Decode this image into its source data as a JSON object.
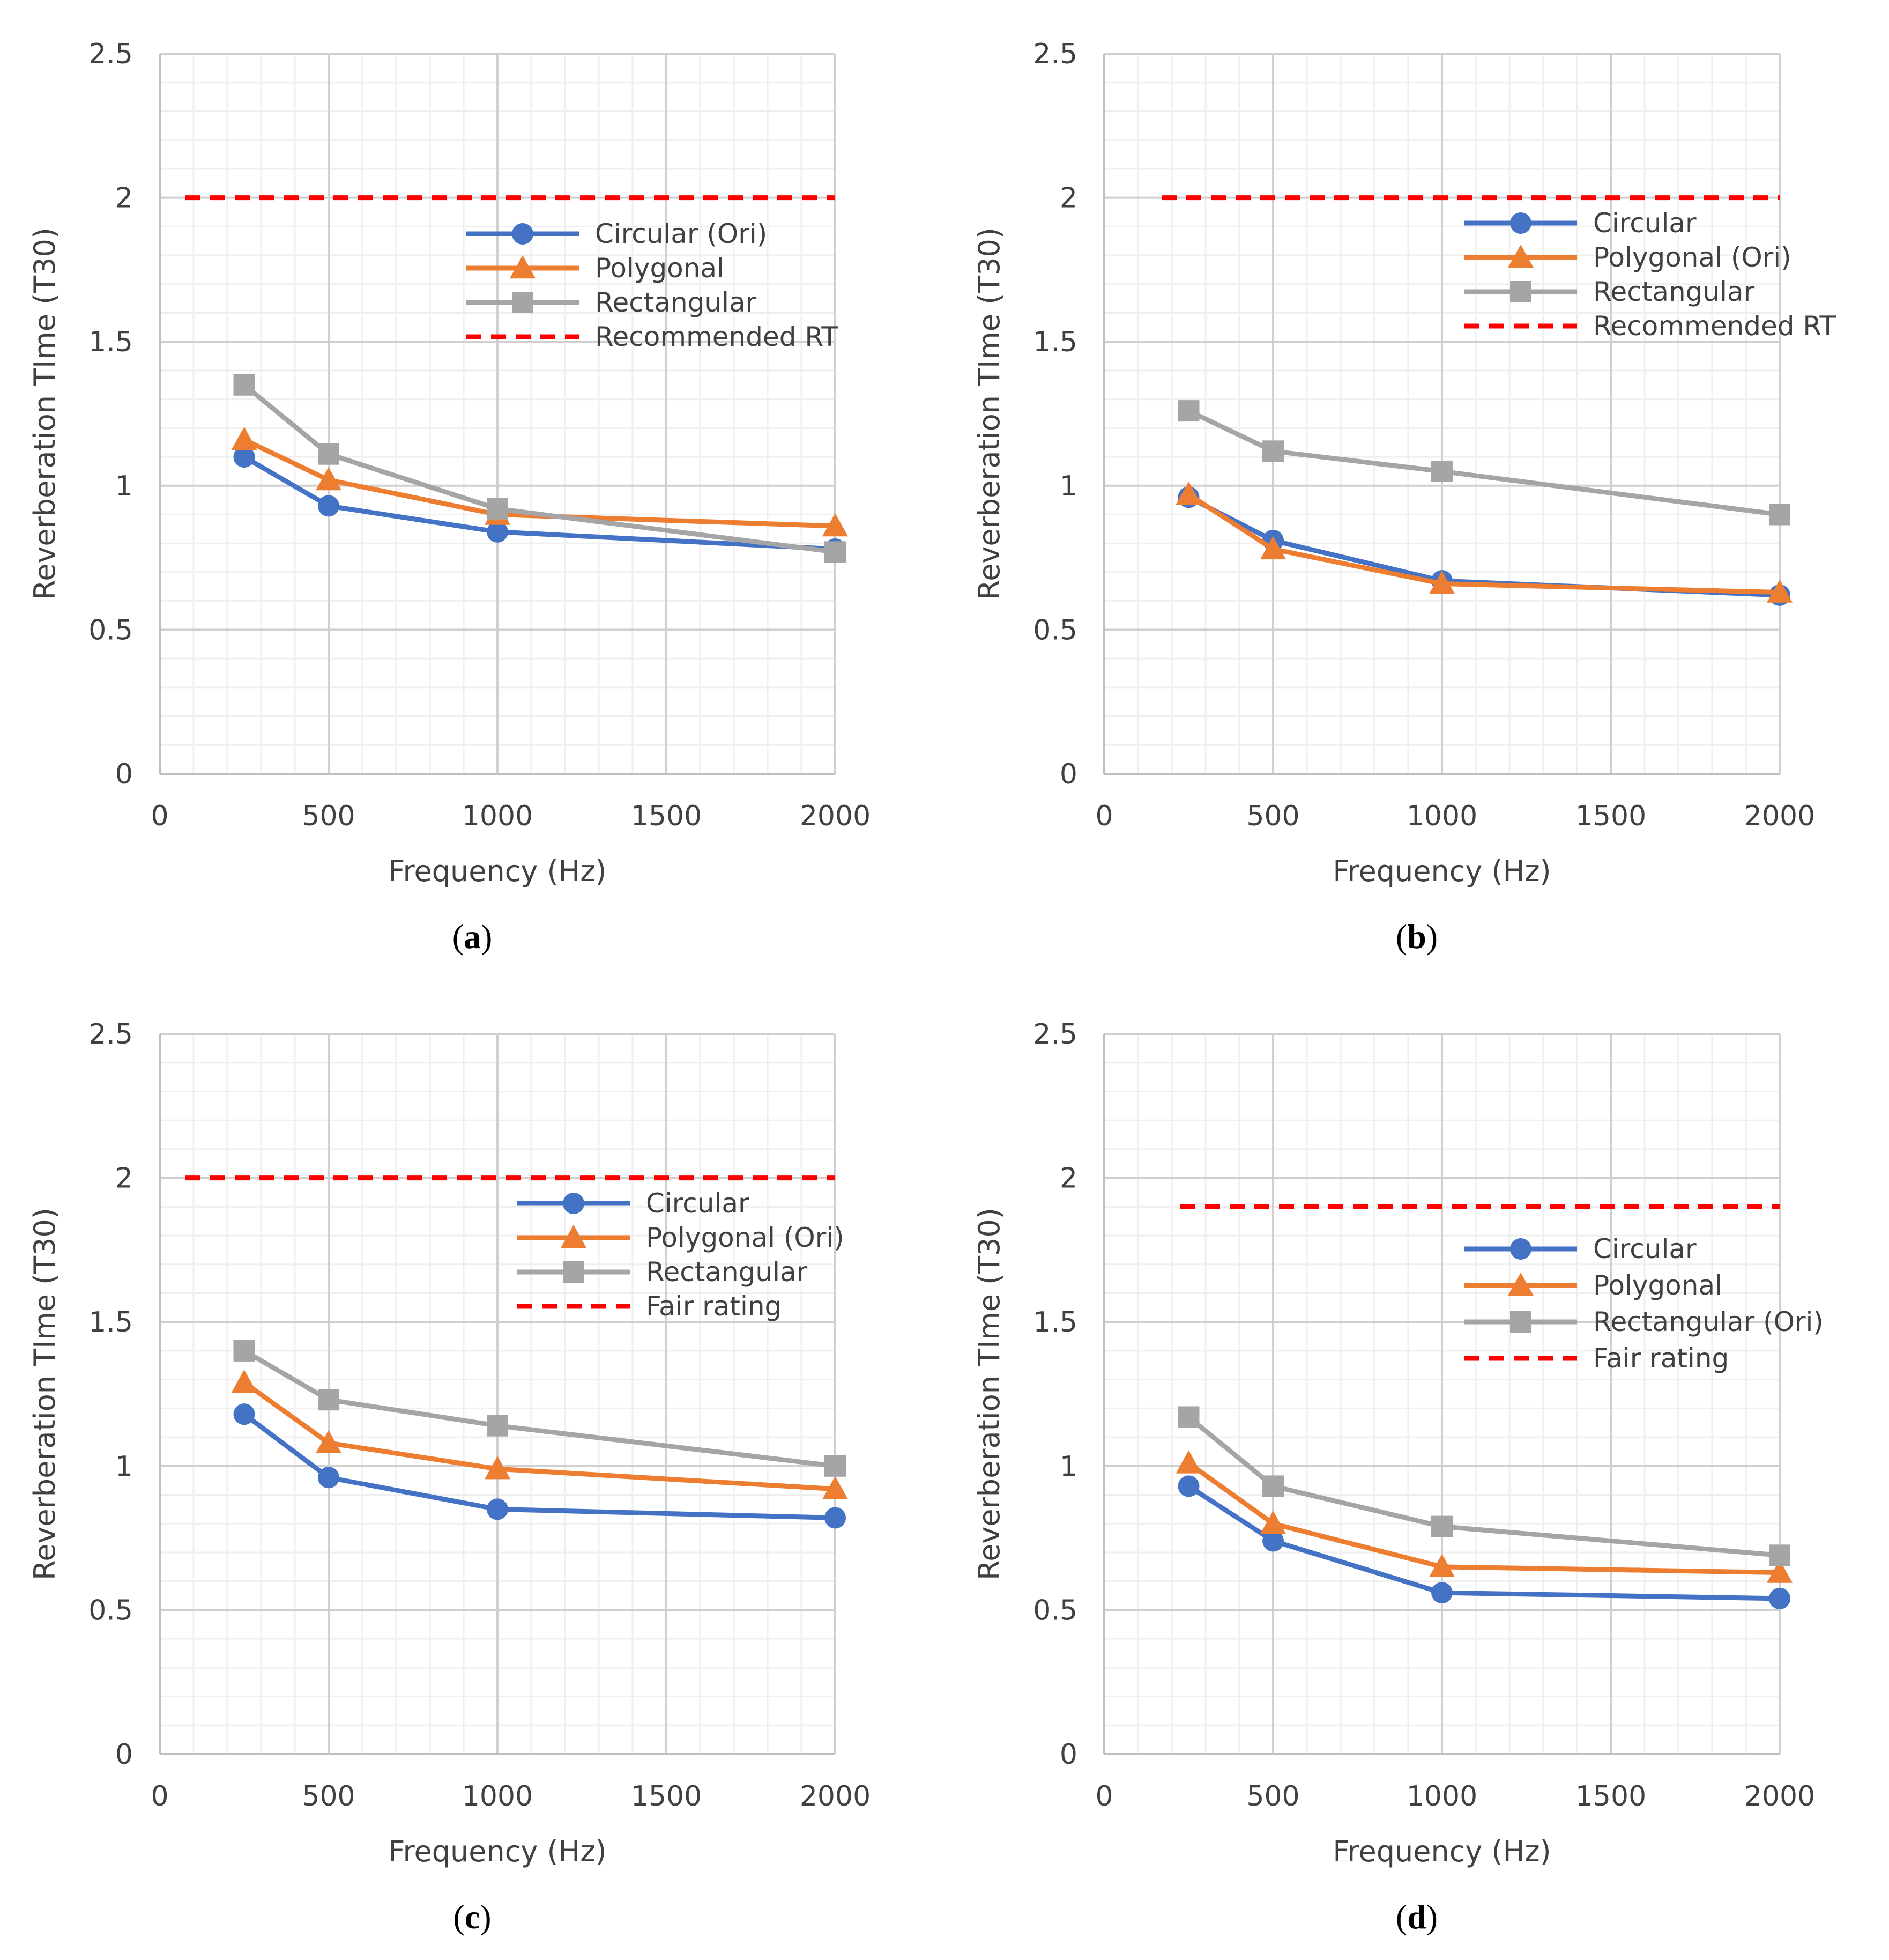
{
  "chart_data": [
    {
      "type": "line",
      "panel_label": "a",
      "xlabel": "Frequency (Hz)",
      "ylabel": "Reverberation TIme (T30)",
      "xlim": [
        0,
        2000
      ],
      "ylim": [
        0,
        2.5
      ],
      "x_ticks": [
        0,
        500,
        1000,
        1500,
        2000
      ],
      "y_ticks": [
        0,
        0.5,
        1,
        1.5,
        2,
        2.5
      ],
      "x": [
        250,
        500,
        1000,
        2000
      ],
      "series": [
        {
          "name": "Circular (Ori)",
          "values": [
            1.1,
            0.93,
            0.84,
            0.78
          ],
          "color": "#4472C4",
          "marker": "circle"
        },
        {
          "name": "Polygonal",
          "values": [
            1.16,
            1.02,
            0.9,
            0.86
          ],
          "color": "#ED7D31",
          "marker": "triangle"
        },
        {
          "name": "Rectangular",
          "values": [
            1.35,
            1.11,
            0.92,
            0.77
          ],
          "color": "#A5A5A5",
          "marker": "square"
        }
      ],
      "reference": {
        "name": "Recommended RT",
        "value": 2.0,
        "color": "#FF0000"
      },
      "legend_position": "upper-right"
    },
    {
      "type": "line",
      "panel_label": "b",
      "xlabel": "Frequency (Hz)",
      "ylabel": "Reverberation TIme (T30)",
      "xlim": [
        0,
        2000
      ],
      "ylim": [
        0,
        2.5
      ],
      "x_ticks": [
        0,
        500,
        1000,
        1500,
        2000
      ],
      "y_ticks": [
        0,
        0.5,
        1,
        1.5,
        2,
        2.5
      ],
      "x": [
        250,
        500,
        1000,
        2000
      ],
      "series": [
        {
          "name": "Circular",
          "values": [
            0.96,
            0.81,
            0.67,
            0.62
          ],
          "color": "#4472C4",
          "marker": "circle"
        },
        {
          "name": "Polygonal (Ori)",
          "values": [
            0.97,
            0.78,
            0.66,
            0.63
          ],
          "color": "#ED7D31",
          "marker": "triangle"
        },
        {
          "name": "Rectangular",
          "values": [
            1.26,
            1.12,
            1.05,
            0.9
          ],
          "color": "#A5A5A5",
          "marker": "square"
        }
      ],
      "reference": {
        "name": "Recommended RT",
        "value": 2.0,
        "color": "#FF0000"
      },
      "legend_position": "upper-right"
    },
    {
      "type": "line",
      "panel_label": "c",
      "xlabel": "Frequency (Hz)",
      "ylabel": "Reverberation TIme (T30)",
      "xlim": [
        0,
        2000
      ],
      "ylim": [
        0,
        2.5
      ],
      "x_ticks": [
        0,
        500,
        1000,
        1500,
        2000
      ],
      "y_ticks": [
        0,
        0.5,
        1,
        1.5,
        2,
        2.5
      ],
      "x": [
        250,
        500,
        1000,
        2000
      ],
      "series": [
        {
          "name": "Circular",
          "values": [
            1.18,
            0.96,
            0.85,
            0.82
          ],
          "color": "#4472C4",
          "marker": "circle"
        },
        {
          "name": "Polygonal (Ori)",
          "values": [
            1.29,
            1.08,
            0.99,
            0.92
          ],
          "color": "#ED7D31",
          "marker": "triangle"
        },
        {
          "name": "Rectangular",
          "values": [
            1.4,
            1.23,
            1.14,
            1.0
          ],
          "color": "#A5A5A5",
          "marker": "square"
        }
      ],
      "reference": {
        "name": "Fair rating",
        "value": 2.0,
        "color": "#FF0000"
      },
      "legend_position": "right"
    },
    {
      "type": "line",
      "panel_label": "d",
      "xlabel": "Frequency (Hz)",
      "ylabel": "Reverberation TIme (T30)",
      "xlim": [
        0,
        2000
      ],
      "ylim": [
        0,
        2.5
      ],
      "x_ticks": [
        0,
        500,
        1000,
        1500,
        2000
      ],
      "y_ticks": [
        0,
        0.5,
        1,
        1.5,
        2,
        2.5
      ],
      "x": [
        250,
        500,
        1000,
        2000
      ],
      "series": [
        {
          "name": "Circular",
          "values": [
            0.93,
            0.74,
            0.56,
            0.54
          ],
          "color": "#4472C4",
          "marker": "circle"
        },
        {
          "name": "Polygonal",
          "values": [
            1.01,
            0.8,
            0.65,
            0.63
          ],
          "color": "#ED7D31",
          "marker": "triangle"
        },
        {
          "name": "Rectangular (Ori)",
          "values": [
            1.17,
            0.93,
            0.79,
            0.69
          ],
          "color": "#A5A5A5",
          "marker": "square"
        }
      ],
      "reference": {
        "name": "Fair rating",
        "value": 1.9,
        "color": "#FF0000"
      },
      "legend_position": "right"
    }
  ],
  "captions": {
    "a": {
      "open": "(",
      "label": "a",
      "close": ")"
    },
    "b": {
      "open": "(",
      "label": "b",
      "close": ")"
    },
    "c": {
      "open": "(",
      "label": "c",
      "close": ")"
    },
    "d": {
      "open": "(",
      "label": "d",
      "close": ")"
    }
  }
}
